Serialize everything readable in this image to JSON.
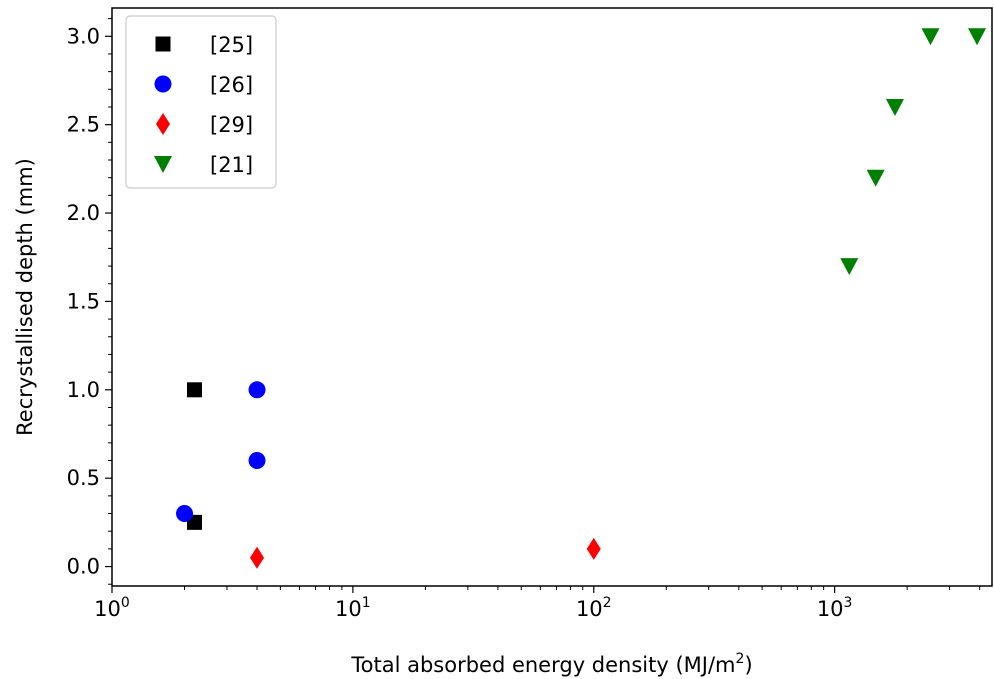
{
  "chart_data": {
    "type": "scatter",
    "xlabel": "Total absorbed energy density (MJ/m",
    "xlabel_sup": "2",
    "xlabel_end": ")",
    "ylabel": "Recrystallised depth (mm)",
    "xscale": "log",
    "xlim": [
      1,
      4500
    ],
    "ylim": [
      -0.11,
      3.16
    ],
    "x_ticks": [
      {
        "value": 1,
        "base": "10",
        "exp": "0"
      },
      {
        "value": 10,
        "base": "10",
        "exp": "1"
      },
      {
        "value": 100,
        "base": "10",
        "exp": "2"
      },
      {
        "value": 1000,
        "base": "10",
        "exp": "3"
      }
    ],
    "y_ticks": [
      {
        "value": 0.0,
        "label": "0.0"
      },
      {
        "value": 0.5,
        "label": "0.5"
      },
      {
        "value": 1.0,
        "label": "1.0"
      },
      {
        "value": 1.5,
        "label": "1.5"
      },
      {
        "value": 2.0,
        "label": "2.0"
      },
      {
        "value": 2.5,
        "label": "2.5"
      },
      {
        "value": 3.0,
        "label": "3.0"
      }
    ],
    "grid": false,
    "legend_position": "top-left",
    "series": [
      {
        "name": "[25]",
        "marker": "square",
        "color": "#000000",
        "points": [
          {
            "x": 2.2,
            "y": 1.0
          },
          {
            "x": 2.2,
            "y": 0.25
          }
        ]
      },
      {
        "name": "[26]",
        "marker": "circle",
        "color": "#0000ff",
        "points": [
          {
            "x": 4.0,
            "y": 1.0
          },
          {
            "x": 4.0,
            "y": 0.6
          },
          {
            "x": 2.0,
            "y": 0.3
          }
        ]
      },
      {
        "name": "[29]",
        "marker": "diamond",
        "color": "#ff0000",
        "points": [
          {
            "x": 4.0,
            "y": 0.05
          },
          {
            "x": 100,
            "y": 0.1
          }
        ]
      },
      {
        "name": "[21]",
        "marker": "triangle-down",
        "color": "#008000",
        "points": [
          {
            "x": 1150,
            "y": 1.7
          },
          {
            "x": 1480,
            "y": 2.2
          },
          {
            "x": 1780,
            "y": 2.6
          },
          {
            "x": 2500,
            "y": 3.0
          },
          {
            "x": 3900,
            "y": 3.0
          }
        ]
      }
    ]
  }
}
